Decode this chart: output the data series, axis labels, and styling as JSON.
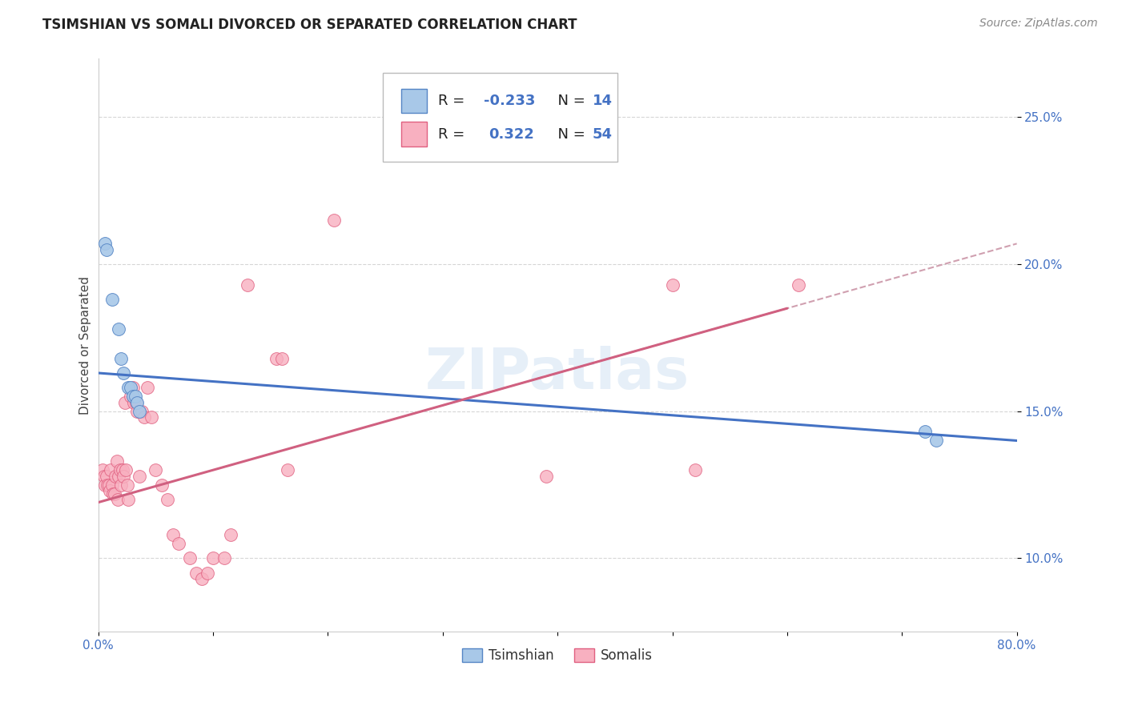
{
  "title": "TSIMSHIAN VS SOMALI DIVORCED OR SEPARATED CORRELATION CHART",
  "source": "Source: ZipAtlas.com",
  "ylabel": "Divorced or Separated",
  "xlim": [
    0.0,
    0.8
  ],
  "ylim": [
    0.075,
    0.27
  ],
  "ytick_vals": [
    0.1,
    0.15,
    0.2,
    0.25
  ],
  "ytick_labels": [
    "10.0%",
    "15.0%",
    "20.0%",
    "25.0%"
  ],
  "xtick_vals": [
    0.0,
    0.1,
    0.2,
    0.3,
    0.4,
    0.5,
    0.6,
    0.7,
    0.8
  ],
  "xtick_labels": [
    "0.0%",
    "",
    "",
    "",
    "",
    "",
    "",
    "",
    "80.0%"
  ],
  "legend_R_blue": "-0.233",
  "legend_N_blue": "14",
  "legend_R_pink": "0.322",
  "legend_N_pink": "54",
  "blue_scatter_color": "#a8c8e8",
  "pink_scatter_color": "#f8b0c0",
  "blue_edge_color": "#5585c5",
  "pink_edge_color": "#e06080",
  "blue_line_color": "#4472c4",
  "pink_line_color": "#d06080",
  "dash_line_color": "#d0a0b0",
  "watermark": "ZIPatlas",
  "tsimshian_points": [
    [
      0.006,
      0.207
    ],
    [
      0.007,
      0.205
    ],
    [
      0.012,
      0.188
    ],
    [
      0.018,
      0.178
    ],
    [
      0.02,
      0.168
    ],
    [
      0.022,
      0.163
    ],
    [
      0.026,
      0.158
    ],
    [
      0.028,
      0.158
    ],
    [
      0.03,
      0.155
    ],
    [
      0.032,
      0.155
    ],
    [
      0.034,
      0.153
    ],
    [
      0.036,
      0.15
    ],
    [
      0.72,
      0.143
    ],
    [
      0.73,
      0.14
    ]
  ],
  "somali_points": [
    [
      0.004,
      0.13
    ],
    [
      0.005,
      0.128
    ],
    [
      0.006,
      0.125
    ],
    [
      0.007,
      0.128
    ],
    [
      0.008,
      0.125
    ],
    [
      0.009,
      0.125
    ],
    [
      0.01,
      0.123
    ],
    [
      0.011,
      0.13
    ],
    [
      0.012,
      0.125
    ],
    [
      0.013,
      0.122
    ],
    [
      0.014,
      0.122
    ],
    [
      0.015,
      0.128
    ],
    [
      0.016,
      0.133
    ],
    [
      0.017,
      0.12
    ],
    [
      0.018,
      0.128
    ],
    [
      0.019,
      0.13
    ],
    [
      0.02,
      0.125
    ],
    [
      0.021,
      0.13
    ],
    [
      0.022,
      0.128
    ],
    [
      0.023,
      0.153
    ],
    [
      0.024,
      0.13
    ],
    [
      0.025,
      0.125
    ],
    [
      0.026,
      0.12
    ],
    [
      0.028,
      0.155
    ],
    [
      0.03,
      0.158
    ],
    [
      0.031,
      0.153
    ],
    [
      0.033,
      0.153
    ],
    [
      0.034,
      0.15
    ],
    [
      0.036,
      0.128
    ],
    [
      0.038,
      0.15
    ],
    [
      0.04,
      0.148
    ],
    [
      0.043,
      0.158
    ],
    [
      0.046,
      0.148
    ],
    [
      0.05,
      0.13
    ],
    [
      0.055,
      0.125
    ],
    [
      0.06,
      0.12
    ],
    [
      0.065,
      0.108
    ],
    [
      0.07,
      0.105
    ],
    [
      0.08,
      0.1
    ],
    [
      0.085,
      0.095
    ],
    [
      0.09,
      0.093
    ],
    [
      0.095,
      0.095
    ],
    [
      0.1,
      0.1
    ],
    [
      0.11,
      0.1
    ],
    [
      0.115,
      0.108
    ],
    [
      0.13,
      0.193
    ],
    [
      0.155,
      0.168
    ],
    [
      0.16,
      0.168
    ],
    [
      0.165,
      0.13
    ],
    [
      0.205,
      0.215
    ],
    [
      0.39,
      0.128
    ],
    [
      0.5,
      0.193
    ],
    [
      0.52,
      0.13
    ],
    [
      0.61,
      0.193
    ]
  ],
  "background_color": "#ffffff",
  "grid_color": "#cccccc",
  "title_fontsize": 12,
  "axis_label_fontsize": 11,
  "tick_fontsize": 11,
  "tick_color": "#4472c4",
  "source_fontsize": 10,
  "watermark_fontsize": 52,
  "watermark_color": "#c8ddf0",
  "watermark_alpha": 0.45
}
